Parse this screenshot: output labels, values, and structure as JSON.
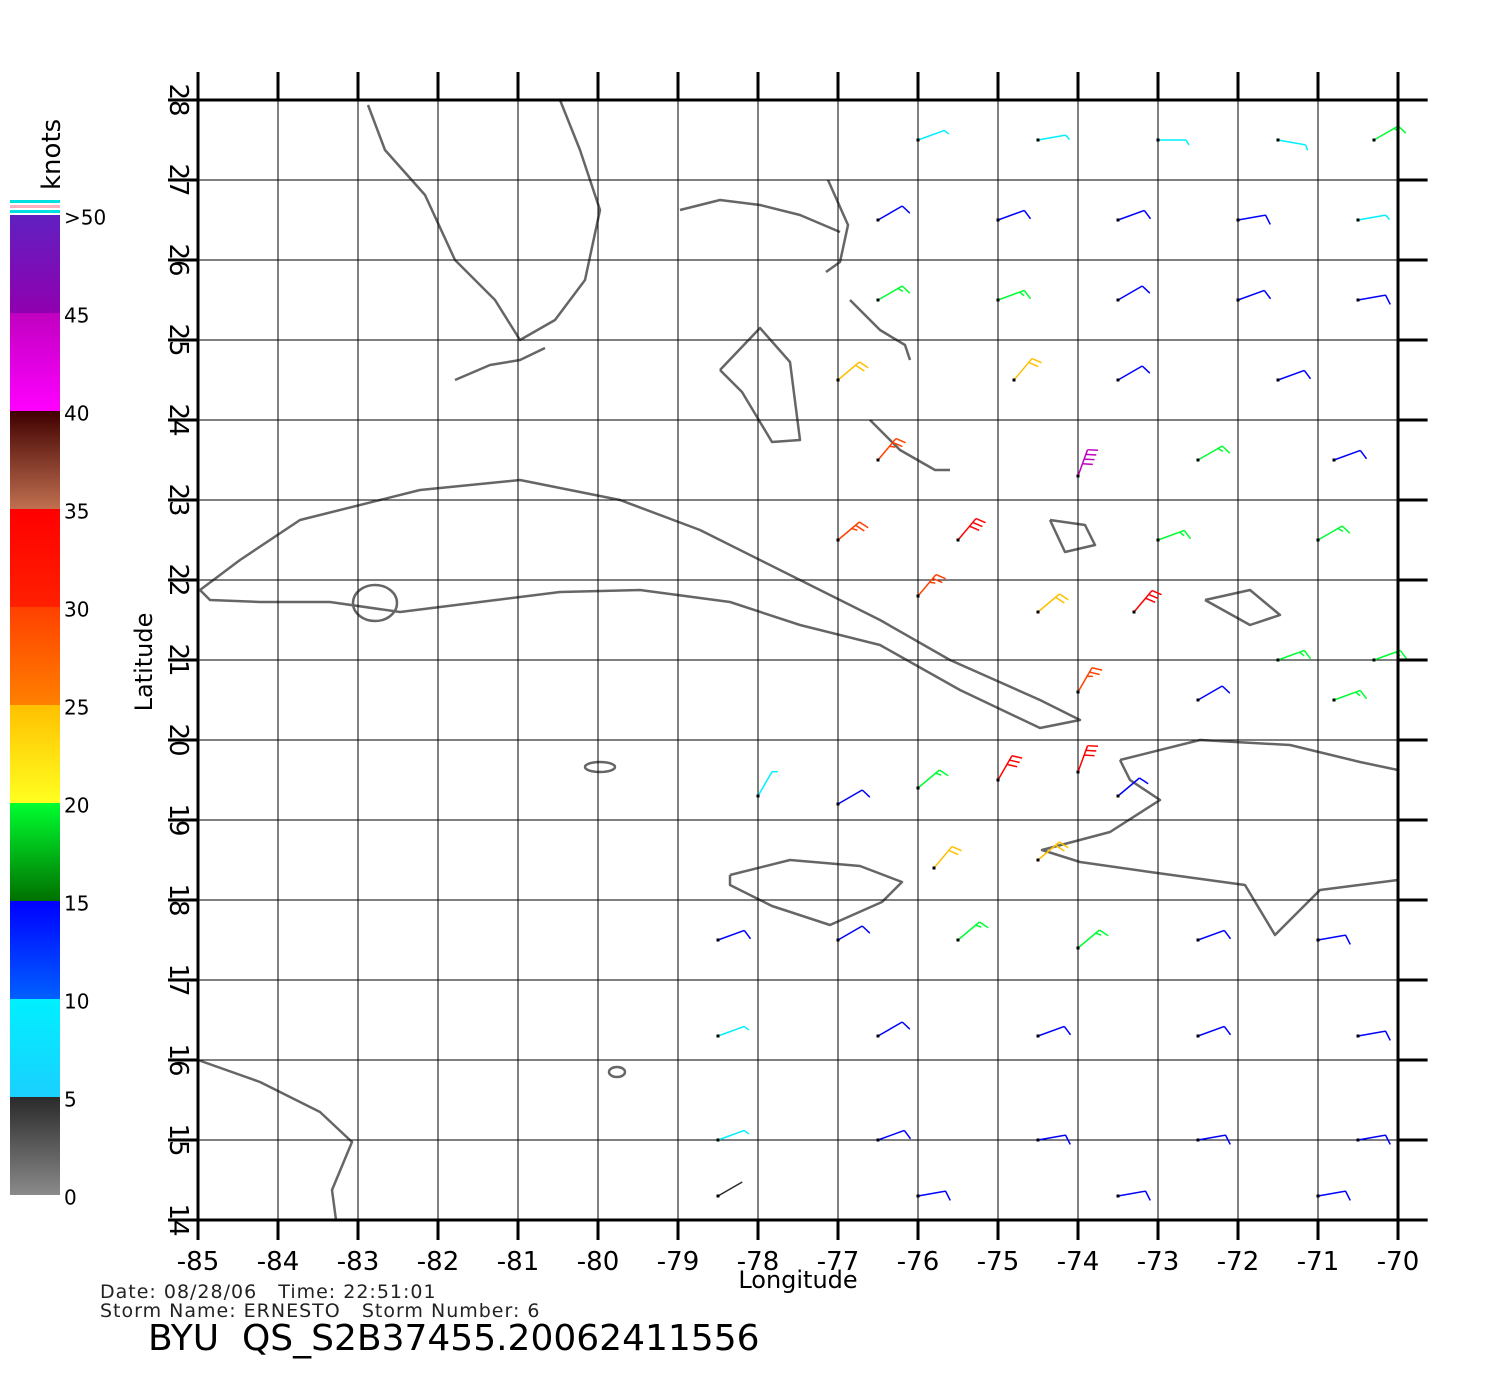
{
  "chart_data": {
    "type": "map",
    "x_label": "Longitude",
    "y_label": "Latitude",
    "xlim": [
      -85,
      -69.63
    ],
    "ylim": [
      14,
      28
    ],
    "xticks": [
      -85,
      -84,
      -83,
      -82,
      -81,
      -80,
      -79,
      -78,
      -77,
      -76,
      -75,
      -74,
      -73,
      -72,
      -71,
      -70
    ],
    "yticks": [
      14,
      15,
      16,
      17,
      18,
      19,
      20,
      21,
      22,
      23,
      24,
      25,
      26,
      27,
      28
    ],
    "grid": true,
    "colorbar": {
      "label": "knots",
      "ticks": [
        0,
        5,
        10,
        15,
        20,
        25,
        30,
        35,
        40,
        45,
        {
          "value": 50,
          "label": ">50"
        }
      ],
      "colors": [
        [
          "#8a8a8a",
          "#2a2a2a"
        ],
        [
          "#1ad0ff",
          "#00f0ff"
        ],
        [
          "#0060ff",
          "#0000ff"
        ],
        [
          "#007000",
          "#00ff30"
        ],
        [
          "#ffff20",
          "#ffc000"
        ],
        [
          "#ff8000",
          "#ff4000"
        ],
        [
          "#ff2000",
          "#ff0000"
        ],
        [
          "#c07050",
          "#400000"
        ],
        [
          "#ff00ff",
          "#c000c0"
        ],
        [
          "#9000b0",
          "#6020c0"
        ]
      ]
    },
    "wind": {
      "lon": [
        -76,
        -74.5,
        -73,
        -71.5,
        -70.3,
        -76.5,
        -75,
        -73.5,
        -72,
        -70.5,
        -76.5,
        -75,
        -73.5,
        -72,
        -70.5,
        -77,
        -74.8,
        -73.5,
        -71.5,
        -76.5,
        -74,
        -72.5,
        -70.8,
        -77,
        -75.5,
        -73,
        -71,
        -76,
        -74.5,
        -73.3,
        -71.5,
        -70.3,
        -74,
        -72.5,
        -70.8,
        -78,
        -77,
        -76,
        -75,
        -74,
        -73.5,
        -75.8,
        -74.5,
        -78.5,
        -77,
        -75.5,
        -74,
        -72.5,
        -71,
        -78.5,
        -76.5,
        -74.5,
        -72.5,
        -70.5,
        -78.5,
        -76.5,
        -74.5,
        -72.5,
        -70.5,
        -78.5,
        -76,
        -73.5,
        -71
      ],
      "lat": [
        27.5,
        27.5,
        27.5,
        27.5,
        27.5,
        26.5,
        26.5,
        26.5,
        26.5,
        26.5,
        25.5,
        25.5,
        25.5,
        25.5,
        25.5,
        24.5,
        24.5,
        24.5,
        24.5,
        23.5,
        23.3,
        23.5,
        23.5,
        22.5,
        22.5,
        22.5,
        22.5,
        21.8,
        21.6,
        21.6,
        21,
        21,
        20.6,
        20.5,
        20.5,
        19.3,
        19.2,
        19.4,
        19.5,
        19.6,
        19.3,
        18.4,
        18.5,
        17.5,
        17.5,
        17.5,
        17.4,
        17.5,
        17.5,
        16.3,
        16.3,
        16.3,
        16.3,
        16.3,
        15,
        15,
        15,
        15,
        15,
        14.3,
        14.3,
        14.3,
        14.3
      ],
      "speed": [
        9,
        8,
        7,
        6,
        16,
        12,
        12,
        12,
        11,
        9,
        17,
        18,
        13,
        12,
        10,
        23,
        21,
        14,
        12,
        27,
        42,
        17,
        13,
        28,
        31,
        18,
        16,
        28,
        22,
        31,
        17,
        18,
        27,
        14,
        17,
        6,
        12,
        19,
        31,
        33,
        14,
        24,
        20,
        10,
        14,
        15,
        16,
        12,
        11,
        9,
        12,
        13,
        13,
        12,
        8,
        11,
        13,
        12,
        12,
        4,
        10,
        12,
        11
      ],
      "direction": [
        70,
        80,
        90,
        100,
        60,
        60,
        70,
        70,
        80,
        80,
        60,
        70,
        60,
        70,
        80,
        50,
        40,
        60,
        70,
        40,
        20,
        60,
        70,
        50,
        40,
        70,
        60,
        40,
        50,
        40,
        70,
        70,
        30,
        60,
        70,
        30,
        60,
        50,
        30,
        20,
        50,
        40,
        50,
        70,
        60,
        50,
        50,
        70,
        80,
        70,
        60,
        70,
        70,
        80,
        70,
        70,
        80,
        80,
        80,
        60,
        80,
        80,
        80
      ]
    },
    "footer": {
      "line1": "Date: 08/28/06   Time: 22:51:01",
      "line2": "Storm Name: ERNESTO   Storm Number: 6",
      "title": "BYU  QS_S2B37455.20062411556"
    }
  }
}
